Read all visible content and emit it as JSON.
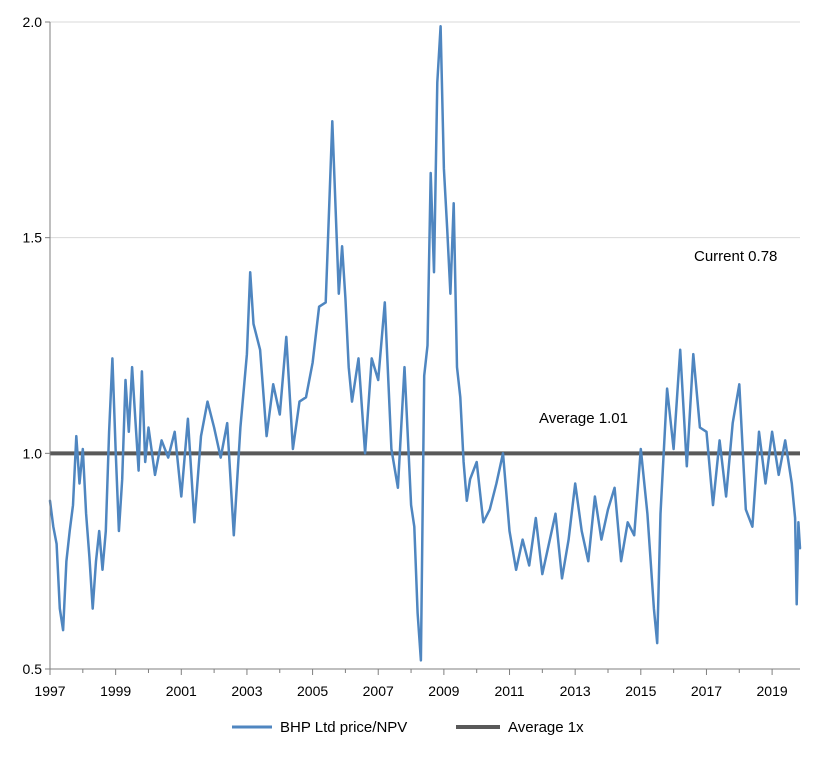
{
  "chart_data": {
    "type": "line",
    "title": "",
    "xlabel": "",
    "ylabel": "",
    "xlim": [
      1997.0,
      2019.85
    ],
    "ylim": [
      0.5,
      2.0
    ],
    "grid": "horizontal",
    "legend_position": "bottom",
    "x_ticks": [
      "1997",
      "1999",
      "2001",
      "2003",
      "2005",
      "2007",
      "2009",
      "2011",
      "2013",
      "2015",
      "2017",
      "2019"
    ],
    "y_ticks": [
      "0.5",
      "1.0",
      "1.5",
      "2.0"
    ],
    "series": [
      {
        "name": "BHP Ltd price/NPV",
        "color": "#4f86c0",
        "x": [
          1997.0,
          1997.1,
          1997.2,
          1997.3,
          1997.4,
          1997.5,
          1997.6,
          1997.7,
          1997.8,
          1997.9,
          1998.0,
          1998.1,
          1998.2,
          1998.3,
          1998.4,
          1998.5,
          1998.6,
          1998.7,
          1998.8,
          1998.9,
          1999.0,
          1999.1,
          1999.2,
          1999.3,
          1999.4,
          1999.5,
          1999.6,
          1999.7,
          1999.8,
          1999.9,
          2000.0,
          2000.2,
          2000.4,
          2000.6,
          2000.8,
          2001.0,
          2001.2,
          2001.4,
          2001.6,
          2001.8,
          2002.0,
          2002.2,
          2002.4,
          2002.6,
          2002.8,
          2003.0,
          2003.1,
          2003.2,
          2003.4,
          2003.6,
          2003.8,
          2004.0,
          2004.2,
          2004.4,
          2004.6,
          2004.8,
          2005.0,
          2005.2,
          2005.4,
          2005.6,
          2005.8,
          2005.9,
          2006.0,
          2006.1,
          2006.2,
          2006.4,
          2006.6,
          2006.8,
          2007.0,
          2007.2,
          2007.4,
          2007.6,
          2007.8,
          2008.0,
          2008.1,
          2008.2,
          2008.3,
          2008.4,
          2008.5,
          2008.6,
          2008.7,
          2008.8,
          2008.9,
          2009.0,
          2009.1,
          2009.2,
          2009.3,
          2009.4,
          2009.5,
          2009.6,
          2009.7,
          2009.8,
          2010.0,
          2010.2,
          2010.4,
          2010.6,
          2010.8,
          2011.0,
          2011.2,
          2011.4,
          2011.6,
          2011.8,
          2012.0,
          2012.2,
          2012.4,
          2012.6,
          2012.8,
          2013.0,
          2013.2,
          2013.4,
          2013.6,
          2013.8,
          2014.0,
          2014.2,
          2014.4,
          2014.6,
          2014.8,
          2015.0,
          2015.2,
          2015.4,
          2015.5,
          2015.6,
          2015.8,
          2016.0,
          2016.2,
          2016.4,
          2016.6,
          2016.8,
          2017.0,
          2017.2,
          2017.4,
          2017.6,
          2017.8,
          2018.0,
          2018.2,
          2018.4,
          2018.6,
          2018.8,
          2019.0,
          2019.2,
          2019.4,
          2019.6,
          2019.7,
          2019.75,
          2019.8,
          2019.85
        ],
        "y": [
          0.89,
          0.83,
          0.79,
          0.64,
          0.59,
          0.75,
          0.82,
          0.88,
          1.04,
          0.93,
          1.01,
          0.86,
          0.76,
          0.64,
          0.75,
          0.82,
          0.73,
          0.82,
          1.05,
          1.22,
          1.01,
          0.82,
          0.94,
          1.17,
          1.05,
          1.2,
          1.08,
          0.96,
          1.19,
          0.98,
          1.06,
          0.95,
          1.03,
          0.99,
          1.05,
          0.9,
          1.08,
          0.84,
          1.04,
          1.12,
          1.06,
          0.99,
          1.07,
          0.81,
          1.06,
          1.23,
          1.42,
          1.3,
          1.24,
          1.04,
          1.16,
          1.09,
          1.27,
          1.01,
          1.12,
          1.13,
          1.21,
          1.34,
          1.35,
          1.77,
          1.37,
          1.48,
          1.36,
          1.2,
          1.12,
          1.22,
          1.0,
          1.22,
          1.17,
          1.35,
          1.01,
          0.92,
          1.2,
          0.88,
          0.83,
          0.63,
          0.52,
          1.18,
          1.25,
          1.65,
          1.42,
          1.86,
          1.99,
          1.66,
          1.52,
          1.37,
          1.58,
          1.2,
          1.13,
          0.98,
          0.89,
          0.94,
          0.98,
          0.84,
          0.87,
          0.93,
          1.0,
          0.82,
          0.73,
          0.8,
          0.74,
          0.85,
          0.72,
          0.79,
          0.86,
          0.71,
          0.8,
          0.93,
          0.82,
          0.75,
          0.9,
          0.8,
          0.87,
          0.92,
          0.75,
          0.84,
          0.81,
          1.01,
          0.86,
          0.64,
          0.56,
          0.86,
          1.15,
          1.01,
          1.24,
          0.97,
          1.23,
          1.06,
          1.05,
          0.88,
          1.03,
          0.9,
          1.07,
          1.16,
          0.87,
          0.83,
          1.05,
          0.93,
          1.05,
          0.95,
          1.03,
          0.93,
          0.85,
          0.65,
          0.84,
          0.78
        ]
      },
      {
        "name": "Average 1x",
        "color": "#595959",
        "x": [
          1997.0,
          2019.85
        ],
        "y": [
          1.0,
          1.0
        ]
      }
    ],
    "annotations": [
      {
        "text": "Current 0.78"
      },
      {
        "text": "Average 1.01"
      }
    ]
  }
}
